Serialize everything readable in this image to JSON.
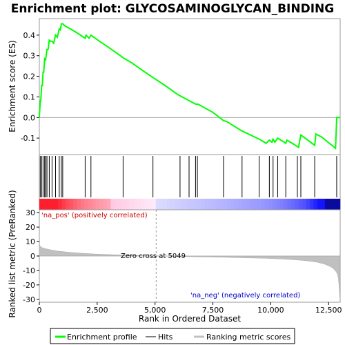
{
  "chart_data": {
    "type": "line",
    "title": "Enrichment plot: GLYCOSAMINOGLYCAN_BINDING",
    "top_panel": {
      "ylabel": "Enrichment score (ES)",
      "yticks": [
        -0.1,
        0.0,
        0.1,
        0.2,
        0.3,
        0.4
      ],
      "ylim": [
        -0.18,
        0.48
      ],
      "series": [
        {
          "name": "Enrichment profile",
          "color": "#00ff00",
          "x": [
            0,
            40,
            60,
            100,
            130,
            160,
            190,
            230,
            270,
            330,
            380,
            430,
            480,
            550,
            620,
            700,
            780,
            860,
            910,
            950,
            1010,
            1100,
            1500,
            1980,
            2020,
            2150,
            2230,
            2600,
            3000,
            3500,
            3620,
            4000,
            4500,
            4900,
            5500,
            6000,
            6500,
            6750,
            6850,
            7500,
            7960,
            8100,
            8750,
            9500,
            9800,
            9940,
            10050,
            10100,
            10180,
            10300,
            10650,
            10700,
            11000,
            11200,
            11300,
            11900,
            11950,
            12200,
            12800,
            12850,
            12990
          ],
          "y": [
            0.0,
            0.08,
            0.08,
            0.155,
            0.155,
            0.22,
            0.22,
            0.285,
            0.28,
            0.33,
            0.33,
            0.375,
            0.37,
            0.37,
            0.36,
            0.4,
            0.39,
            0.43,
            0.425,
            0.455,
            0.455,
            0.445,
            0.42,
            0.385,
            0.4,
            0.385,
            0.4,
            0.37,
            0.34,
            0.3,
            0.29,
            0.265,
            0.225,
            0.195,
            0.15,
            0.11,
            0.08,
            0.065,
            0.065,
            0.025,
            -0.015,
            -0.02,
            -0.065,
            -0.105,
            -0.125,
            -0.11,
            -0.12,
            -0.105,
            -0.12,
            -0.1,
            -0.125,
            -0.11,
            -0.13,
            -0.145,
            -0.085,
            -0.135,
            -0.08,
            -0.095,
            -0.15,
            0.0,
            0.0
          ]
        }
      ]
    },
    "hits": {
      "name": "Hits",
      "positions": [
        40,
        100,
        160,
        230,
        280,
        330,
        430,
        550,
        700,
        860,
        950,
        1010,
        1980,
        2230,
        3620,
        4910,
        6080,
        6470,
        6750,
        6830,
        7960,
        8760,
        9500,
        9940,
        10100,
        10300,
        10650,
        11150,
        11300,
        11900,
        12850
      ]
    },
    "bottom_panel": {
      "ylabel": "Ranked list metric (PreRanked)",
      "xlabel": "Rank in Ordered Dataset",
      "yticks": [
        -30,
        -20,
        -10,
        0,
        10,
        20,
        30
      ],
      "xticks": [
        0,
        2500,
        5000,
        7500,
        10000,
        12500
      ],
      "xtick_labels": [
        "0",
        "2,500",
        "5,000",
        "7,500",
        "10,000",
        "12,500"
      ],
      "ylim": [
        -32,
        32
      ],
      "xlim": [
        0,
        13000
      ],
      "n_ranks": 12990,
      "zero_cross": 5049,
      "metric_x": [
        0,
        30,
        80,
        150,
        300,
        500,
        800,
        1200,
        1800,
        2500,
        3300,
        4200,
        5049,
        6000,
        7000,
        8000,
        9000,
        9800,
        10500,
        11000,
        11500,
        12000,
        12300,
        12500,
        12650,
        12750,
        12830,
        12880,
        12920,
        12950,
        12970,
        12990
      ],
      "metric_y": [
        8.5,
        7.0,
        6.2,
        5.6,
        4.9,
        4.2,
        3.4,
        2.7,
        1.9,
        1.3,
        0.8,
        0.4,
        0.0,
        -0.3,
        -0.6,
        -0.9,
        -1.3,
        -1.6,
        -2.1,
        -2.6,
        -3.2,
        -4.3,
        -5.5,
        -6.8,
        -8.0,
        -9.5,
        -11.0,
        -12.5,
        -15.0,
        -20.0,
        -25.0,
        -29.5
      ],
      "zero_label": "Zero cross at 5049",
      "pos_label": "'na_pos' (positively correlated)",
      "neg_label": "'na_neg' (negatively correlated)",
      "pos_color": "#cc0000",
      "neg_color": "#0000cc"
    },
    "legend": {
      "placement": "bottom",
      "items": [
        {
          "label": "Enrichment profile",
          "color": "#00ff00"
        },
        {
          "label": "Hits",
          "color": "#000000"
        },
        {
          "label": "Ranking metric scores",
          "color": "#c0c0c0"
        }
      ]
    },
    "grid": false
  }
}
